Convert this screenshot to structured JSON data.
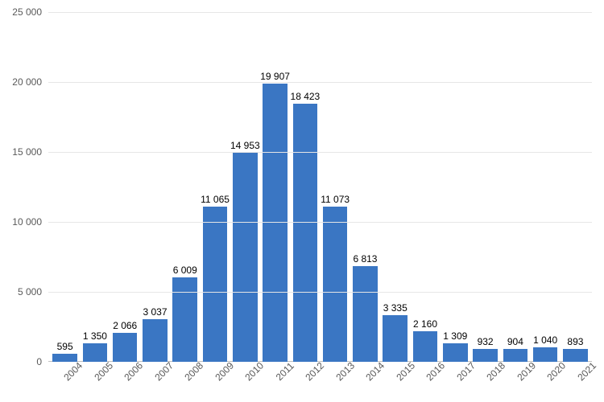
{
  "chart": {
    "type": "bar",
    "categories": [
      "2004",
      "2005",
      "2006",
      "2007",
      "2008",
      "2009",
      "2010",
      "2011",
      "2012",
      "2013",
      "2014",
      "2015",
      "2016",
      "2017",
      "2018",
      "2019",
      "2020",
      "2021"
    ],
    "values": [
      595,
      1350,
      2066,
      3037,
      6009,
      11065,
      14953,
      19907,
      18423,
      11073,
      6813,
      3335,
      2160,
      1309,
      932,
      904,
      1040,
      893
    ],
    "value_labels": [
      "595",
      "1 350",
      "2 066",
      "3 037",
      "6 009",
      "11 065",
      "14 953",
      "19 907",
      "18 423",
      "11 073",
      "6 813",
      "3 335",
      "2 160",
      "1 309",
      "932",
      "904",
      "1 040",
      "893"
    ],
    "bar_color": "#3a76c3",
    "background_color": "#ffffff",
    "grid_color": "#e6e6e6",
    "axis_color": "#c0c0c0",
    "tick_label_color": "#595959",
    "bar_label_color": "#000000",
    "ylim": [
      0,
      25000
    ],
    "ytick_step": 5000,
    "ytick_labels": [
      "0",
      "5 000",
      "10 000",
      "15 000",
      "20 000",
      "25 000"
    ],
    "label_fontsize": 12,
    "x_label_rotation_deg": -45,
    "bar_width_ratio": 0.82
  }
}
